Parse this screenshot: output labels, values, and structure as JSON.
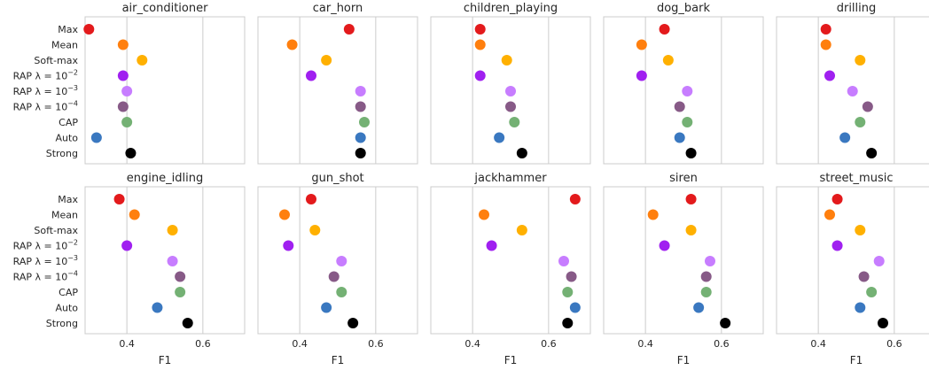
{
  "chart_data": {
    "type": "scatter",
    "methods": [
      "Max",
      "Mean",
      "Soft-max",
      "RAP λ=1e-2",
      "RAP λ=1e-3",
      "RAP λ=1e-4",
      "CAP",
      "Auto",
      "Strong"
    ],
    "method_labels": [
      {
        "text": "Max"
      },
      {
        "text": "Mean"
      },
      {
        "text": "Soft-max"
      },
      {
        "text": "RAP λ = 10",
        "sup": "−2"
      },
      {
        "text": "RAP λ = 10",
        "sup": "−3"
      },
      {
        "text": "RAP λ = 10",
        "sup": "−4"
      },
      {
        "text": "CAP"
      },
      {
        "text": "Auto"
      },
      {
        "text": "Strong"
      }
    ],
    "colors": [
      "#e31a1c",
      "#ff7f0e",
      "#ffb000",
      "#a020f0",
      "#c77dff",
      "#875a87",
      "#74b174",
      "#3a78c0",
      "#000000"
    ],
    "xlim": [
      0.29,
      0.71
    ],
    "xticks": [
      0.4,
      0.6
    ],
    "xtick_labels": [
      "0.4",
      "0.6"
    ],
    "xlabel": "F1",
    "grid": true,
    "panels": [
      {
        "title": "air_conditioner",
        "values": [
          0.3,
          0.39,
          0.44,
          0.39,
          0.4,
          0.39,
          0.4,
          0.32,
          0.41
        ]
      },
      {
        "title": "car_horn",
        "values": [
          0.53,
          0.38,
          0.47,
          0.43,
          0.56,
          0.56,
          0.57,
          0.56,
          0.56
        ]
      },
      {
        "title": "children_playing",
        "values": [
          0.42,
          0.42,
          0.49,
          0.42,
          0.5,
          0.5,
          0.51,
          0.47,
          0.53
        ]
      },
      {
        "title": "dog_bark",
        "values": [
          0.45,
          0.39,
          0.46,
          0.39,
          0.51,
          0.49,
          0.51,
          0.49,
          0.52
        ]
      },
      {
        "title": "drilling",
        "values": [
          0.42,
          0.42,
          0.51,
          0.43,
          0.49,
          0.53,
          0.51,
          0.47,
          0.54
        ]
      },
      {
        "title": "engine_idling",
        "values": [
          0.38,
          0.42,
          0.52,
          0.4,
          0.52,
          0.54,
          0.54,
          0.48,
          0.56
        ]
      },
      {
        "title": "gun_shot",
        "values": [
          0.43,
          0.36,
          0.44,
          0.37,
          0.51,
          0.49,
          0.51,
          0.47,
          0.54
        ]
      },
      {
        "title": "jackhammer",
        "values": [
          0.67,
          0.43,
          0.53,
          0.45,
          0.64,
          0.66,
          0.65,
          0.67,
          0.65
        ]
      },
      {
        "title": "siren",
        "values": [
          0.52,
          0.42,
          0.52,
          0.45,
          0.57,
          0.56,
          0.56,
          0.54,
          0.61
        ]
      },
      {
        "title": "street_music",
        "values": [
          0.45,
          0.43,
          0.51,
          0.45,
          0.56,
          0.52,
          0.54,
          0.51,
          0.57
        ]
      }
    ]
  }
}
